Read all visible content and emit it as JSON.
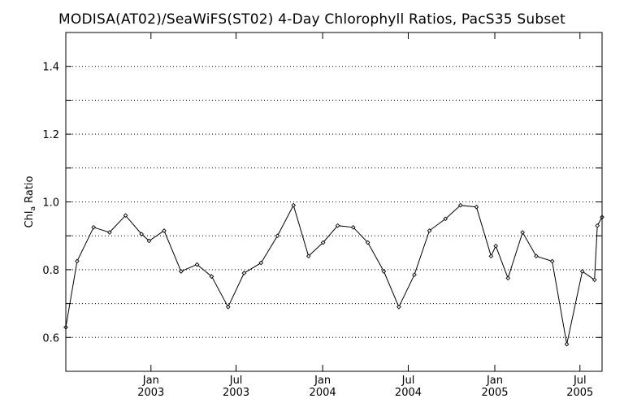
{
  "chart_data": {
    "type": "line",
    "title": "MODISA(AT02)/SeaWiFS(ST02) 4-Day Chlorophyll Ratios, PacS35 Subset",
    "ylabel": "Chl_a Ratio",
    "ylabel_main": "Chl",
    "ylabel_sub": "a",
    "ylabel_rest": " Ratio",
    "xlabel": "",
    "ylim": [
      0.5,
      1.5
    ],
    "xlim": [
      "2002-07-04",
      "2005-08-17"
    ],
    "y_ticks": [
      {
        "value": 0.6,
        "label": "0.6"
      },
      {
        "value": 0.8,
        "label": "0.8"
      },
      {
        "value": 1.0,
        "label": "1.0"
      },
      {
        "value": 1.2,
        "label": "1.2"
      },
      {
        "value": 1.4,
        "label": "1.4"
      }
    ],
    "y_minor_gridlines": [
      0.5,
      0.6,
      0.7,
      0.8,
      0.9,
      1.0,
      1.1,
      1.2,
      1.3,
      1.4,
      1.5
    ],
    "x_ticks": [
      {
        "date": "2003-01-01",
        "month": "Jan",
        "year": "2003"
      },
      {
        "date": "2003-07-01",
        "month": "Jul",
        "year": "2003"
      },
      {
        "date": "2004-01-01",
        "month": "Jan",
        "year": "2004"
      },
      {
        "date": "2004-07-01",
        "month": "Jul",
        "year": "2004"
      },
      {
        "date": "2005-01-01",
        "month": "Jan",
        "year": "2005"
      },
      {
        "date": "2005-07-01",
        "month": "Jul",
        "year": "2005"
      }
    ],
    "grid": "horizontal dotted",
    "series": [
      {
        "color": "#000000",
        "marker": "diamond",
        "points": [
          {
            "x": "2002-07-04",
            "y": 0.63
          },
          {
            "x": "2002-07-28",
            "y": 0.825
          },
          {
            "x": "2002-09-01",
            "y": 0.925
          },
          {
            "x": "2002-10-05",
            "y": 0.91
          },
          {
            "x": "2002-11-08",
            "y": 0.96
          },
          {
            "x": "2002-12-12",
            "y": 0.905
          },
          {
            "x": "2002-12-28",
            "y": 0.885
          },
          {
            "x": "2003-01-29",
            "y": 0.915
          },
          {
            "x": "2003-03-06",
            "y": 0.795
          },
          {
            "x": "2003-04-09",
            "y": 0.815
          },
          {
            "x": "2003-05-10",
            "y": 0.78
          },
          {
            "x": "2003-06-14",
            "y": 0.69
          },
          {
            "x": "2003-07-18",
            "y": 0.79
          },
          {
            "x": "2003-08-23",
            "y": 0.82
          },
          {
            "x": "2003-09-27",
            "y": 0.9
          },
          {
            "x": "2003-10-31",
            "y": 0.99
          },
          {
            "x": "2003-12-02",
            "y": 0.84
          },
          {
            "x": "2004-01-02",
            "y": 0.88
          },
          {
            "x": "2004-02-02",
            "y": 0.93
          },
          {
            "x": "2004-03-06",
            "y": 0.925
          },
          {
            "x": "2004-04-06",
            "y": 0.88
          },
          {
            "x": "2004-05-10",
            "y": 0.795
          },
          {
            "x": "2004-06-11",
            "y": 0.69
          },
          {
            "x": "2004-07-14",
            "y": 0.785
          },
          {
            "x": "2004-08-15",
            "y": 0.915
          },
          {
            "x": "2004-09-18",
            "y": 0.95
          },
          {
            "x": "2004-10-20",
            "y": 0.99
          },
          {
            "x": "2004-11-23",
            "y": 0.985
          },
          {
            "x": "2004-12-24",
            "y": 0.84
          },
          {
            "x": "2005-01-03",
            "y": 0.87
          },
          {
            "x": "2005-01-29",
            "y": 0.775
          },
          {
            "x": "2005-03-01",
            "y": 0.91
          },
          {
            "x": "2005-03-30",
            "y": 0.84
          },
          {
            "x": "2005-05-03",
            "y": 0.825
          },
          {
            "x": "2005-06-03",
            "y": 0.58
          },
          {
            "x": "2005-07-06",
            "y": 0.795
          },
          {
            "x": "2005-08-01",
            "y": 0.77
          },
          {
            "x": "2005-08-07",
            "y": 0.93
          },
          {
            "x": "2005-08-17",
            "y": 0.955
          }
        ]
      }
    ]
  }
}
